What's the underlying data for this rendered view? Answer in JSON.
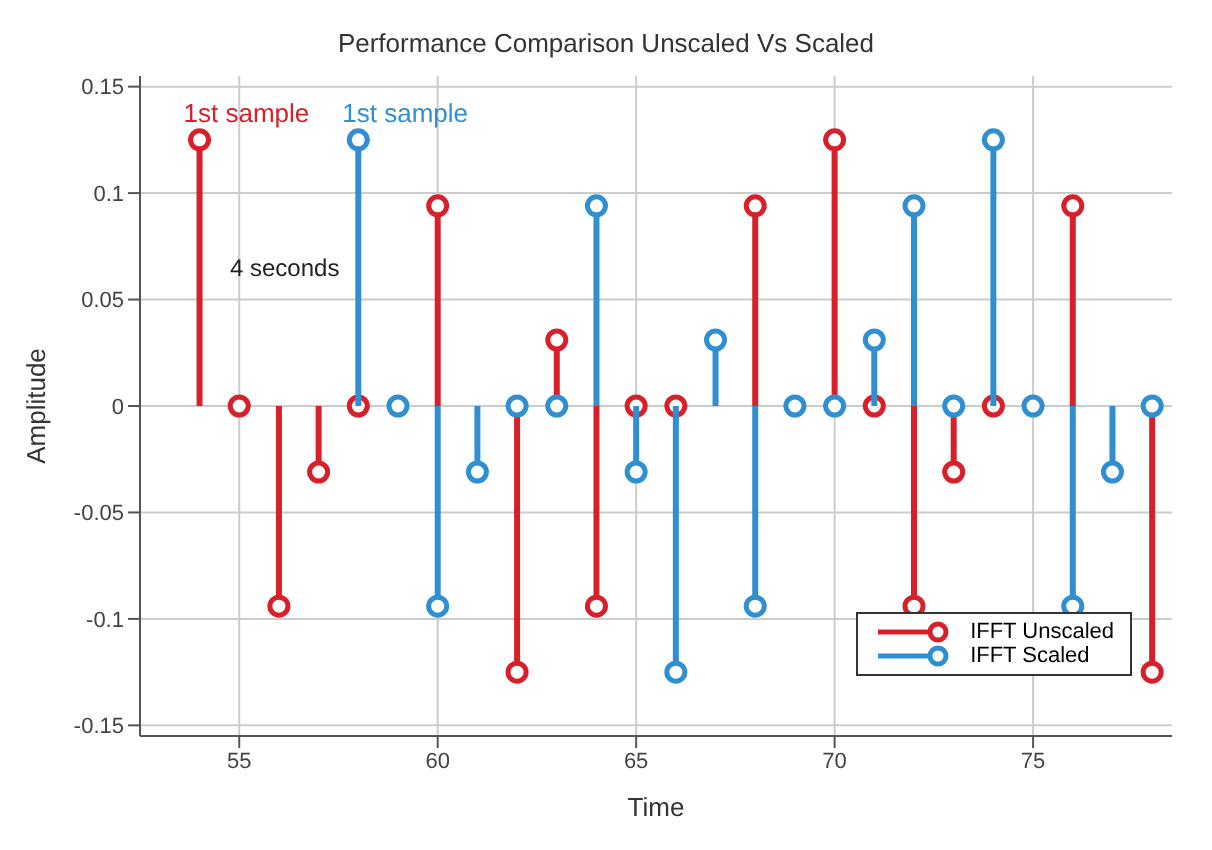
{
  "chart_data": {
    "type": "lollipop",
    "title": "Performance Comparison Unscaled Vs Scaled",
    "xlabel": "Time",
    "ylabel": "Amplitude",
    "xlim": [
      52.5,
      78.5
    ],
    "xticks": [
      55,
      60,
      65,
      70,
      75
    ],
    "ylim": [
      -0.155,
      0.155
    ],
    "yticks": [
      -0.15,
      -0.1,
      -0.05,
      0,
      0.05,
      0.1,
      0.15
    ],
    "grid": true,
    "legend": "bottom right",
    "marker": "circle",
    "annotations": [
      {
        "text": "1st sample",
        "x": 54,
        "y": 0.125
      },
      {
        "text": "1st sample",
        "x": 58,
        "y": 0.125
      },
      "4 seconds"
    ],
    "series": [
      {
        "name": "IFFT Unscaled",
        "color": "#d7202a",
        "x": [
          54,
          55,
          56,
          57,
          58,
          59,
          60,
          61,
          62,
          63,
          64,
          65,
          66,
          67,
          68,
          69,
          70,
          71,
          72,
          73,
          74,
          75,
          76,
          77,
          78
        ],
        "values": [
          0.125,
          0,
          -0.094,
          -0.031,
          0,
          null,
          0.094,
          null,
          -0.125,
          0.031,
          -0.094,
          0,
          0,
          null,
          0.094,
          null,
          0.125,
          0,
          -0.094,
          -0.031,
          0,
          null,
          0.094,
          null,
          -0.125
        ]
      },
      {
        "name": "IFFT Scaled",
        "color": "#2f8fd0",
        "x": [
          58,
          59,
          60,
          61,
          62,
          63,
          64,
          65,
          66,
          67,
          68,
          69,
          70,
          71,
          72,
          73,
          74,
          75,
          76,
          77,
          78
        ],
        "values": [
          0.125,
          0,
          -0.094,
          -0.031,
          0,
          0,
          0.094,
          -0.031,
          -0.125,
          0.031,
          -0.094,
          0,
          0,
          0.031,
          0.094,
          0,
          0.125,
          0,
          -0.094,
          -0.031,
          0
        ]
      }
    ]
  }
}
